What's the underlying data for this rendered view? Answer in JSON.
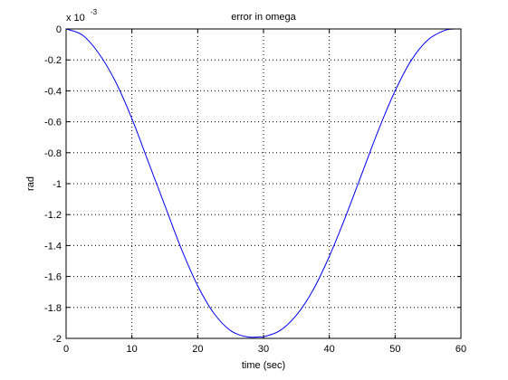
{
  "chart_data": {
    "type": "line",
    "title": "error in omega",
    "xlabel": "time (sec)",
    "ylabel": "rad",
    "exponent_label": {
      "base": "x 10",
      "power": "-3"
    },
    "xlim": [
      0,
      60
    ],
    "ylim": [
      -2,
      0
    ],
    "grid": true,
    "x_ticks": [
      0,
      10,
      20,
      30,
      40,
      50,
      60
    ],
    "x_tick_labels": [
      "0",
      "10",
      "20",
      "30",
      "40",
      "50",
      "60"
    ],
    "y_ticks": [
      0,
      -0.2,
      -0.4,
      -0.6,
      -0.8,
      -1,
      -1.2,
      -1.4,
      -1.6,
      -1.8,
      -2
    ],
    "y_tick_labels": [
      "0",
      "-0.2",
      "-0.4",
      "-0.6",
      "-0.8",
      "-1",
      "-1.2",
      "-1.4",
      "-1.6",
      "-1.8",
      "-2"
    ],
    "series": [
      {
        "color": "#0000ff",
        "x": [
          0,
          2.5,
          5,
          7.5,
          10,
          12.5,
          15,
          17.5,
          20,
          22.5,
          25,
          27.5,
          29.5,
          30,
          32.5,
          35,
          37.5,
          40,
          42.5,
          45,
          47.5,
          50,
          52.5,
          55,
          57.5,
          59
        ],
        "y": [
          0,
          -0.04,
          -0.16,
          -0.34,
          -0.58,
          -0.86,
          -1.14,
          -1.42,
          -1.66,
          -1.84,
          -1.95,
          -1.99,
          -1.99,
          -1.99,
          -1.95,
          -1.85,
          -1.69,
          -1.47,
          -1.21,
          -0.93,
          -0.65,
          -0.4,
          -0.2,
          -0.07,
          -0.01,
          0
        ]
      }
    ]
  }
}
